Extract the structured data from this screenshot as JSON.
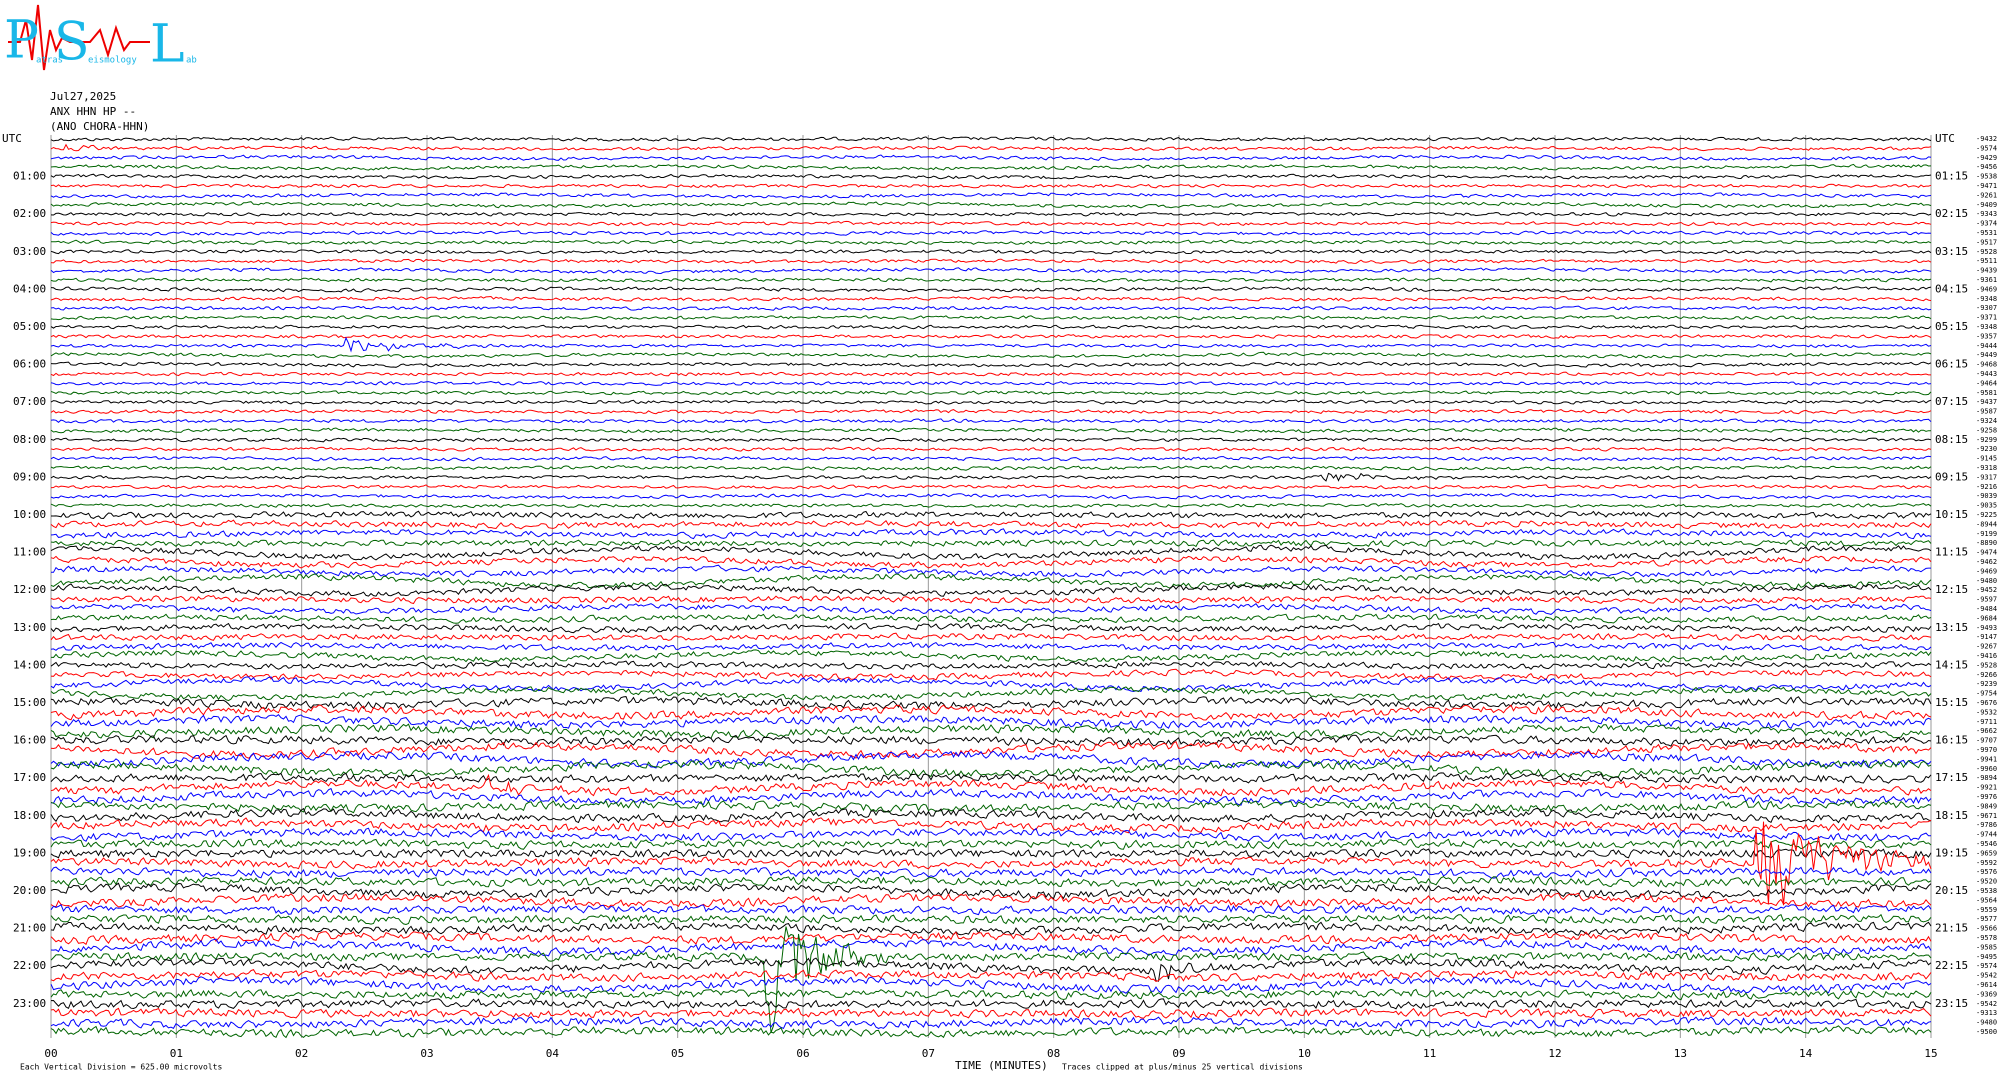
{
  "header": {
    "logo": {
      "letters": [
        "P",
        "S",
        "L"
      ],
      "words": [
        "atras",
        "eismology",
        "ab"
      ]
    },
    "date": "Jul27,2025",
    "station": "ANX HHN HP --",
    "location": "(ANO CHORA-HHN)"
  },
  "helicorder": {
    "left_labels": [
      "UTC",
      "01:00",
      "02:00",
      "03:00",
      "04:00",
      "05:00",
      "06:00",
      "07:00",
      "08:00",
      "09:00",
      "10:00",
      "11:00",
      "12:00",
      "13:00",
      "14:00",
      "15:00",
      "16:00",
      "17:00",
      "18:00",
      "19:00",
      "20:00",
      "21:00",
      "22:00",
      "23:00"
    ],
    "right_labels": [
      "UTC",
      "01:15",
      "02:15",
      "03:15",
      "04:15",
      "05:15",
      "06:15",
      "07:15",
      "08:15",
      "09:15",
      "10:15",
      "11:15",
      "12:15",
      "13:15",
      "14:15",
      "15:15",
      "16:15",
      "17:15",
      "18:15",
      "19:15",
      "20:15",
      "21:15",
      "22:15",
      "23:15"
    ],
    "offsets": [
      -9432,
      -9574,
      -9429,
      -9456,
      -9538,
      -9471,
      -9261,
      -9409,
      -9343,
      -9374,
      -9531,
      -9517,
      -9528,
      -9511,
      -9439,
      -9361,
      -9469,
      -9348,
      -9307,
      -9371,
      -9348,
      -9357,
      -9444,
      -9449,
      -9468,
      -9443,
      -9464,
      -9581,
      -9437,
      -9587,
      -9324,
      -9258,
      -9299,
      -9230,
      -9145,
      -9318,
      -9317,
      -9216,
      -9039,
      -9035,
      -9225,
      -8944,
      -9199,
      -8890,
      -9474,
      -9462,
      -9469,
      -9480,
      -9452,
      -9597,
      -9484,
      -9684,
      -9493,
      -9147,
      -9267,
      -9416,
      -9528,
      -9266,
      -9239,
      -9754,
      -9676,
      -9532,
      -9711,
      -9662,
      -9707,
      -9970,
      -9941,
      -9960,
      -9894,
      -9921,
      -9976,
      -9849,
      -9671,
      -9786,
      -9744,
      -9546,
      -9659,
      -9592,
      -9576,
      -9520,
      -9538,
      -9564,
      -9559,
      -9577,
      -9566,
      -9578,
      -9585,
      -9495,
      -9574,
      -9542,
      -9614,
      -9369,
      -9542,
      -9313,
      -9480,
      -9500
    ],
    "trace_colors": [
      "#000000",
      "#ff0000",
      "#0000ff",
      "#006400"
    ],
    "x_ticks": [
      {
        "value": 0,
        "label": "00"
      },
      {
        "value": 1,
        "label": "01"
      },
      {
        "value": 2,
        "label": "02"
      },
      {
        "value": 3,
        "label": "03"
      },
      {
        "value": 4,
        "label": "04"
      },
      {
        "value": 5,
        "label": "05"
      },
      {
        "value": 6,
        "label": "06"
      },
      {
        "value": 7,
        "label": "07"
      },
      {
        "value": 8,
        "label": "08"
      },
      {
        "value": 9,
        "label": "09"
      },
      {
        "value": 10,
        "label": "10"
      },
      {
        "value": 11,
        "label": "11"
      },
      {
        "value": 12,
        "label": "12"
      },
      {
        "value": 13,
        "label": "13"
      },
      {
        "value": 14,
        "label": "14"
      },
      {
        "value": 15,
        "label": "15"
      }
    ],
    "x_label": "TIME (MINUTES)",
    "scale_note": "Each Vertical Division =  625.00 microvolts",
    "clip_note": "Traces clipped at plus/minus 25 vertical divisions"
  }
}
